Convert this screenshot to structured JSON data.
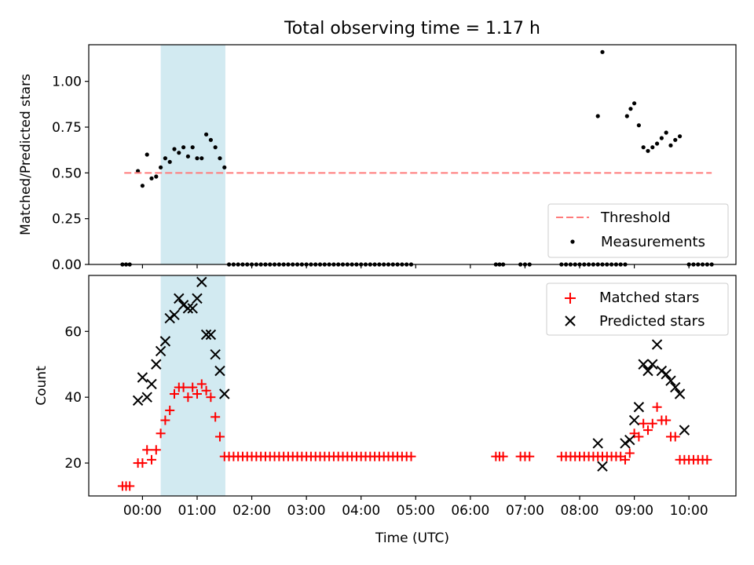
{
  "title": "Total observing time = 1.17 h",
  "chart_data": [
    {
      "type": "scatter",
      "ylabel": "Matched/Predicted stars",
      "ylim": [
        0,
        1.2
      ],
      "yticks": [
        {
          "v": 0,
          "label": "0.00"
        },
        {
          "v": 0.25,
          "label": "0.25"
        },
        {
          "v": 0.5,
          "label": "0.50"
        },
        {
          "v": 0.75,
          "label": "0.75"
        },
        {
          "v": 1.0,
          "label": "1.00"
        }
      ],
      "threshold": {
        "name": "Threshold",
        "value": 0.5,
        "x_range": [
          "-0:20",
          "10:25"
        ],
        "color": "#ff7b7b"
      },
      "shaded_span": {
        "x_range": [
          "0:20",
          "1:31"
        ],
        "color": "#add8e6"
      },
      "legend": {
        "placement": "lower-right",
        "entries": [
          "Threshold",
          "Measurements"
        ]
      },
      "series": [
        {
          "name": "Measurements",
          "color": "#000000",
          "points": [
            [
              "-0:22",
              0
            ],
            [
              "-0:18",
              0
            ],
            [
              "-0:14",
              0
            ],
            [
              "-0:05",
              0.51
            ],
            [
              "0:00",
              0.43
            ],
            [
              "0:05",
              0.6
            ],
            [
              "0:10",
              0.47
            ],
            [
              "0:15",
              0.48
            ],
            [
              "0:20",
              0.53
            ],
            [
              "0:25",
              0.58
            ],
            [
              "0:30",
              0.56
            ],
            [
              "0:35",
              0.63
            ],
            [
              "0:40",
              0.61
            ],
            [
              "0:45",
              0.64
            ],
            [
              "0:50",
              0.59
            ],
            [
              "0:55",
              0.64
            ],
            [
              "1:00",
              0.58
            ],
            [
              "1:05",
              0.58
            ],
            [
              "1:10",
              0.71
            ],
            [
              "1:15",
              0.68
            ],
            [
              "1:20",
              0.64
            ],
            [
              "1:25",
              0.58
            ],
            [
              "1:30",
              0.53
            ],
            [
              "1:35",
              0
            ],
            [
              "1:40",
              0
            ],
            [
              "1:45",
              0
            ],
            [
              "1:50",
              0
            ],
            [
              "1:55",
              0
            ],
            [
              "2:00",
              0
            ],
            [
              "2:05",
              0
            ],
            [
              "2:10",
              0
            ],
            [
              "2:15",
              0
            ],
            [
              "2:20",
              0
            ],
            [
              "2:25",
              0
            ],
            [
              "2:30",
              0
            ],
            [
              "2:35",
              0
            ],
            [
              "2:40",
              0
            ],
            [
              "2:45",
              0
            ],
            [
              "2:50",
              0
            ],
            [
              "2:55",
              0
            ],
            [
              "3:00",
              0
            ],
            [
              "3:05",
              0
            ],
            [
              "3:10",
              0
            ],
            [
              "3:15",
              0
            ],
            [
              "3:20",
              0
            ],
            [
              "3:25",
              0
            ],
            [
              "3:30",
              0
            ],
            [
              "3:35",
              0
            ],
            [
              "3:40",
              0
            ],
            [
              "3:45",
              0
            ],
            [
              "3:50",
              0
            ],
            [
              "3:55",
              0
            ],
            [
              "4:00",
              0
            ],
            [
              "4:05",
              0
            ],
            [
              "4:10",
              0
            ],
            [
              "4:15",
              0
            ],
            [
              "4:20",
              0
            ],
            [
              "4:25",
              0
            ],
            [
              "4:30",
              0
            ],
            [
              "4:35",
              0
            ],
            [
              "4:40",
              0
            ],
            [
              "4:45",
              0
            ],
            [
              "4:50",
              0
            ],
            [
              "4:55",
              0
            ],
            [
              "6:28",
              0
            ],
            [
              "6:32",
              0
            ],
            [
              "6:36",
              0
            ],
            [
              "6:55",
              0
            ],
            [
              "7:00",
              0
            ],
            [
              "7:05",
              0
            ],
            [
              "7:40",
              0
            ],
            [
              "7:45",
              0
            ],
            [
              "7:50",
              0
            ],
            [
              "7:55",
              0
            ],
            [
              "8:00",
              0
            ],
            [
              "8:05",
              0
            ],
            [
              "8:10",
              0
            ],
            [
              "8:15",
              0
            ],
            [
              "8:20",
              0
            ],
            [
              "8:25",
              0
            ],
            [
              "8:30",
              0
            ],
            [
              "8:35",
              0
            ],
            [
              "8:40",
              0
            ],
            [
              "8:45",
              0
            ],
            [
              "8:50",
              0
            ],
            [
              "8:20",
              0.81
            ],
            [
              "8:25",
              1.16
            ],
            [
              "8:52",
              0.81
            ],
            [
              "8:56",
              0.85
            ],
            [
              "9:00",
              0.88
            ],
            [
              "9:05",
              0.76
            ],
            [
              "9:10",
              0.64
            ],
            [
              "9:15",
              0.62
            ],
            [
              "9:20",
              0.64
            ],
            [
              "9:25",
              0.66
            ],
            [
              "9:30",
              0.69
            ],
            [
              "9:35",
              0.72
            ],
            [
              "9:40",
              0.65
            ],
            [
              "9:45",
              0.68
            ],
            [
              "9:50",
              0.7
            ],
            [
              "10:00",
              0
            ],
            [
              "10:05",
              0
            ],
            [
              "10:10",
              0
            ],
            [
              "10:15",
              0
            ],
            [
              "10:20",
              0
            ],
            [
              "10:25",
              0
            ]
          ]
        }
      ]
    },
    {
      "type": "scatter",
      "xlabel": "Time (UTC)",
      "ylabel": "Count",
      "ylim": [
        10,
        77
      ],
      "yticks": [
        {
          "v": 20,
          "label": "20"
        },
        {
          "v": 40,
          "label": "40"
        },
        {
          "v": 60,
          "label": "60"
        }
      ],
      "xticks": [
        "00:00",
        "01:00",
        "02:00",
        "03:00",
        "04:00",
        "05:00",
        "06:00",
        "07:00",
        "08:00",
        "09:00",
        "10:00"
      ],
      "shaded_span": {
        "x_range": [
          "0:20",
          "1:31"
        ],
        "color": "#add8e6"
      },
      "legend": {
        "placement": "top-right",
        "entries": [
          "Matched stars",
          "Predicted stars"
        ]
      },
      "series": [
        {
          "name": "Matched stars",
          "marker": "plus",
          "color": "#ff0000",
          "points": [
            [
              "-0:22",
              13
            ],
            [
              "-0:18",
              13
            ],
            [
              "-0:14",
              13
            ],
            [
              "-0:05",
              20
            ],
            [
              "0:00",
              20
            ],
            [
              "0:05",
              24
            ],
            [
              "0:10",
              21
            ],
            [
              "0:15",
              24
            ],
            [
              "0:20",
              29
            ],
            [
              "0:25",
              33
            ],
            [
              "0:30",
              36
            ],
            [
              "0:35",
              41
            ],
            [
              "0:40",
              43
            ],
            [
              "0:45",
              43
            ],
            [
              "0:50",
              40
            ],
            [
              "0:55",
              43
            ],
            [
              "1:00",
              41
            ],
            [
              "1:05",
              44
            ],
            [
              "1:10",
              42
            ],
            [
              "1:15",
              40
            ],
            [
              "1:20",
              34
            ],
            [
              "1:25",
              28
            ],
            [
              "1:30",
              22
            ],
            [
              "1:35",
              22
            ],
            [
              "1:40",
              22
            ],
            [
              "1:45",
              22
            ],
            [
              "1:50",
              22
            ],
            [
              "1:55",
              22
            ],
            [
              "2:00",
              22
            ],
            [
              "2:05",
              22
            ],
            [
              "2:10",
              22
            ],
            [
              "2:15",
              22
            ],
            [
              "2:20",
              22
            ],
            [
              "2:25",
              22
            ],
            [
              "2:30",
              22
            ],
            [
              "2:35",
              22
            ],
            [
              "2:40",
              22
            ],
            [
              "2:45",
              22
            ],
            [
              "2:50",
              22
            ],
            [
              "2:55",
              22
            ],
            [
              "3:00",
              22
            ],
            [
              "3:05",
              22
            ],
            [
              "3:10",
              22
            ],
            [
              "3:15",
              22
            ],
            [
              "3:20",
              22
            ],
            [
              "3:25",
              22
            ],
            [
              "3:30",
              22
            ],
            [
              "3:35",
              22
            ],
            [
              "3:40",
              22
            ],
            [
              "3:45",
              22
            ],
            [
              "3:50",
              22
            ],
            [
              "3:55",
              22
            ],
            [
              "4:00",
              22
            ],
            [
              "4:05",
              22
            ],
            [
              "4:10",
              22
            ],
            [
              "4:15",
              22
            ],
            [
              "4:20",
              22
            ],
            [
              "4:25",
              22
            ],
            [
              "4:30",
              22
            ],
            [
              "4:35",
              22
            ],
            [
              "4:40",
              22
            ],
            [
              "4:45",
              22
            ],
            [
              "4:50",
              22
            ],
            [
              "4:55",
              22
            ],
            [
              "6:28",
              22
            ],
            [
              "6:32",
              22
            ],
            [
              "6:36",
              22
            ],
            [
              "6:55",
              22
            ],
            [
              "7:00",
              22
            ],
            [
              "7:05",
              22
            ],
            [
              "7:40",
              22
            ],
            [
              "7:45",
              22
            ],
            [
              "7:50",
              22
            ],
            [
              "7:55",
              22
            ],
            [
              "8:00",
              22
            ],
            [
              "8:05",
              22
            ],
            [
              "8:10",
              22
            ],
            [
              "8:15",
              22
            ],
            [
              "8:20",
              22
            ],
            [
              "8:25",
              22
            ],
            [
              "8:30",
              22
            ],
            [
              "8:35",
              22
            ],
            [
              "8:40",
              22
            ],
            [
              "8:45",
              22
            ],
            [
              "8:50",
              21
            ],
            [
              "8:55",
              23
            ],
            [
              "9:00",
              29
            ],
            [
              "9:05",
              28
            ],
            [
              "9:10",
              32
            ],
            [
              "9:15",
              30
            ],
            [
              "9:20",
              32
            ],
            [
              "9:25",
              37
            ],
            [
              "9:30",
              33
            ],
            [
              "9:35",
              33
            ],
            [
              "9:40",
              28
            ],
            [
              "9:45",
              28
            ],
            [
              "9:50",
              21
            ],
            [
              "9:55",
              21
            ],
            [
              "10:00",
              21
            ],
            [
              "10:05",
              21
            ],
            [
              "10:10",
              21
            ],
            [
              "10:15",
              21
            ],
            [
              "10:20",
              21
            ]
          ]
        },
        {
          "name": "Predicted stars",
          "marker": "cross",
          "color": "#000000",
          "points": [
            [
              "-0:05",
              39
            ],
            [
              "0:00",
              46
            ],
            [
              "0:05",
              40
            ],
            [
              "0:10",
              44
            ],
            [
              "0:15",
              50
            ],
            [
              "0:20",
              54
            ],
            [
              "0:25",
              57
            ],
            [
              "0:30",
              64
            ],
            [
              "0:35",
              65
            ],
            [
              "0:40",
              70
            ],
            [
              "0:45",
              68
            ],
            [
              "0:50",
              67
            ],
            [
              "0:55",
              67
            ],
            [
              "1:00",
              70
            ],
            [
              "1:05",
              75
            ],
            [
              "1:10",
              59
            ],
            [
              "1:15",
              59
            ],
            [
              "1:20",
              53
            ],
            [
              "1:25",
              48
            ],
            [
              "1:30",
              41
            ],
            [
              "8:20",
              26
            ],
            [
              "8:25",
              19
            ],
            [
              "8:50",
              26
            ],
            [
              "8:55",
              27
            ],
            [
              "9:00",
              33
            ],
            [
              "9:05",
              37
            ],
            [
              "9:10",
              50
            ],
            [
              "9:15",
              48
            ],
            [
              "9:20",
              50
            ],
            [
              "9:25",
              56
            ],
            [
              "9:30",
              48
            ],
            [
              "9:35",
              47
            ],
            [
              "9:40",
              45
            ],
            [
              "9:45",
              43
            ],
            [
              "9:50",
              41
            ],
            [
              "9:55",
              30
            ]
          ]
        }
      ]
    }
  ]
}
